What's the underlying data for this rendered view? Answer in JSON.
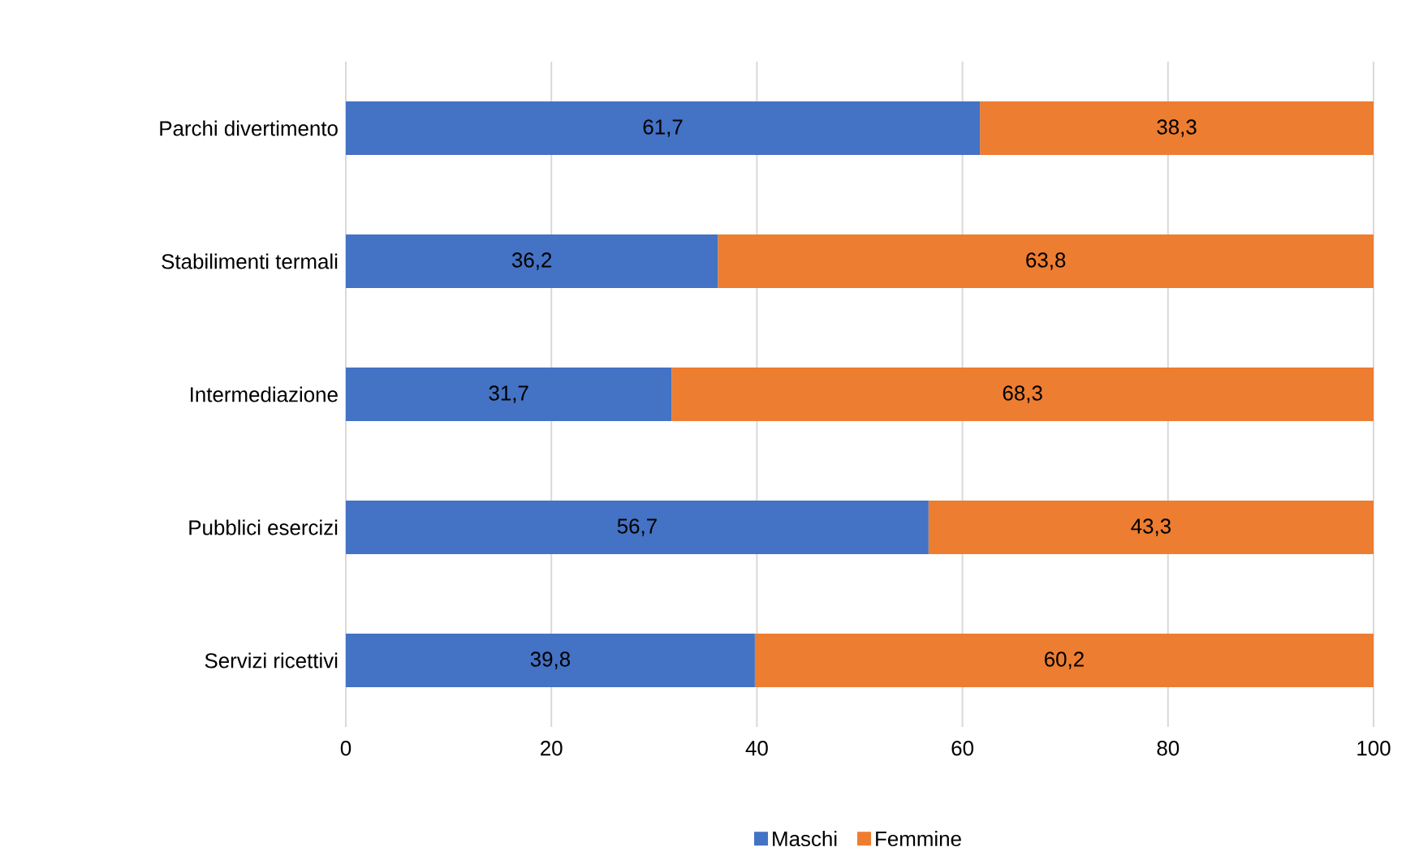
{
  "chart_data": {
    "type": "bar",
    "orientation": "horizontal",
    "stacked": true,
    "categories": [
      "Parchi divertimento",
      "Stabilimenti termali",
      "Intermediazione",
      "Pubblici esercizi",
      "Servizi ricettivi"
    ],
    "series": [
      {
        "name": "Maschi",
        "color": "#4472c4",
        "values": [
          61.7,
          36.2,
          31.7,
          56.7,
          39.8
        ],
        "value_labels": [
          "61,7",
          "36,2",
          "31,7",
          "56,7",
          "39,8"
        ]
      },
      {
        "name": "Femmine",
        "color": "#ed7d31",
        "values": [
          38.3,
          63.8,
          68.3,
          43.3,
          60.2
        ],
        "value_labels": [
          "38,3",
          "63,8",
          "68,3",
          "43,3",
          "60,2"
        ]
      }
    ],
    "xlim": [
      0,
      100
    ],
    "xticks": [
      0,
      20,
      40,
      60,
      80,
      100
    ],
    "grid": "x",
    "legend": "bottom"
  }
}
